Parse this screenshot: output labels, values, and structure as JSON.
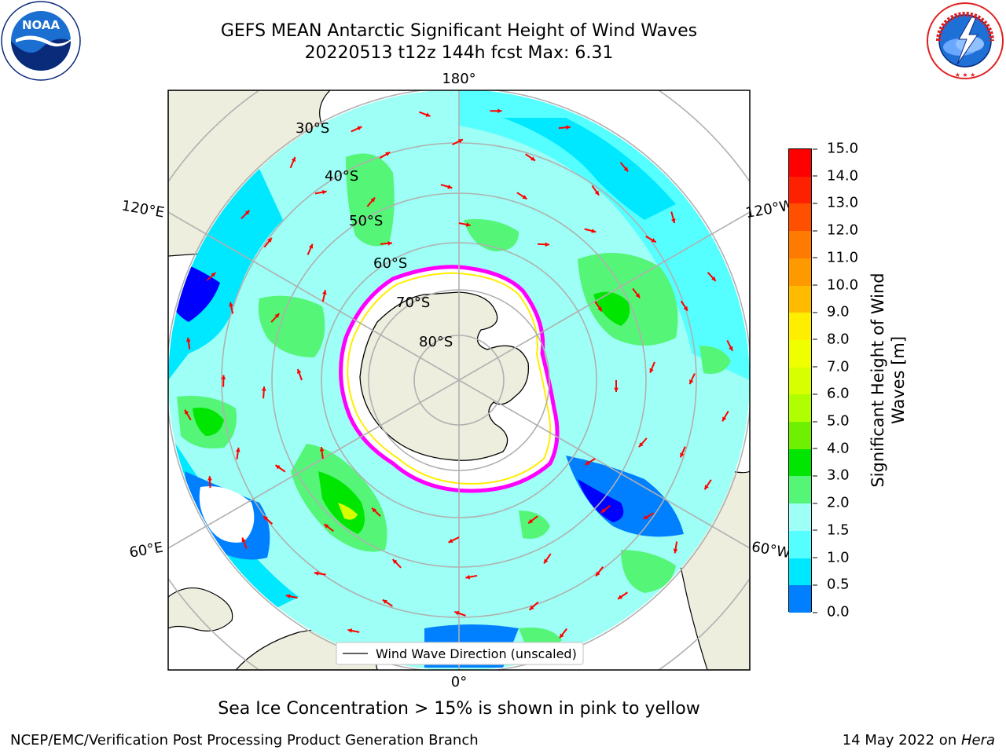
{
  "title": {
    "line1": "GEFS MEAN Antarctic Significant Height of Wind Waves",
    "line2": "20220513 t12z 144h fcst   Max: 6.31"
  },
  "map": {
    "projection": "south-polar-stereographic",
    "longitude_labels": [
      "180°",
      "120°E",
      "120°W",
      "60°E",
      "60°W",
      "0°"
    ],
    "latitude_labels": [
      "30°S",
      "40°S",
      "50°S",
      "60°S",
      "70°S",
      "80°S"
    ],
    "legend_label": "Wind Wave Direction (unscaled)",
    "colors": {
      "land": "#eeeedf",
      "ocean_low": "#0000ff",
      "arrows": "#ff0000",
      "grid": "#b0b0b0",
      "ice_edge": "#ff00ff"
    }
  },
  "colorbar": {
    "label": "Significant Height of Wind Waves [m]",
    "label_lines": [
      "Significant Height of Wind",
      "Waves [m]"
    ],
    "ticks": [
      "15.0",
      "14.0",
      "13.0",
      "12.0",
      "11.0",
      "10.0",
      "9.0",
      "8.0",
      "7.0",
      "6.0",
      "5.0",
      "4.0",
      "3.0",
      "2.0",
      "1.5",
      "1.0",
      "0.5",
      "0.0"
    ],
    "colors": [
      "#ff0000",
      "#ff2000",
      "#ff5000",
      "#ff7a00",
      "#ff9900",
      "#ffbb00",
      "#ffee00",
      "#f0ff00",
      "#d8ff00",
      "#b0ff00",
      "#6ef000",
      "#00e600",
      "#55f578",
      "#9dfff5",
      "#55ffff",
      "#00e8ff",
      "#0080ff",
      "#0000ff"
    ]
  },
  "footer": {
    "note": "Sea Ice Concentration > 15% is shown in pink to yellow",
    "credit": "NCEP/EMC/Verification Post Processing Product Generation Branch",
    "date_prefix": "14 May 2022 on ",
    "machine": "Hera"
  },
  "logos": {
    "noaa": "NOAA",
    "nws_ring": "NATIONAL WEATHER SERVICE",
    "noaa_ring": "NATIONAL OCEANIC AND ATMOSPHERIC ADMINISTRATION"
  }
}
